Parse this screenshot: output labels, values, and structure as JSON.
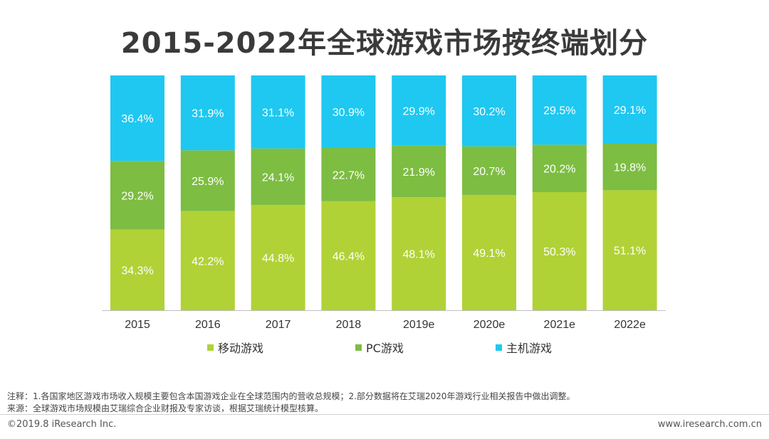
{
  "title": "2015-2022年全球游戏市场按终端划分",
  "chart_data": {
    "type": "bar",
    "stacked": true,
    "percent_stacked": true,
    "categories": [
      "2015",
      "2016",
      "2017",
      "2018",
      "2019e",
      "2020e",
      "2021e",
      "2022e"
    ],
    "series": [
      {
        "name": "移动游戏",
        "color": "#b0d236",
        "values": [
          34.3,
          42.2,
          44.8,
          46.4,
          48.1,
          49.1,
          50.3,
          51.1
        ]
      },
      {
        "name": "PC游戏",
        "color": "#7dbd42",
        "values": [
          29.2,
          25.9,
          24.1,
          22.7,
          21.9,
          20.7,
          20.2,
          19.8
        ]
      },
      {
        "name": "主机游戏",
        "color": "#1ec8f0",
        "values": [
          36.4,
          31.9,
          31.1,
          30.9,
          29.9,
          30.2,
          29.5,
          29.1
        ]
      }
    ],
    "value_suffix": "%",
    "ylim": [
      0,
      100
    ],
    "grid": false,
    "legend_position": "bottom"
  },
  "notes": {
    "note1": "注释：1.各国家地区游戏市场收入规模主要包含本国游戏企业在全球范围内的营收总规模；2.部分数据将在艾瑞2020年游戏行业相关报告中做出调整。",
    "note2": "来源：全球游戏市场规模由艾瑞综合企业财报及专家访谈，根据艾瑞统计模型核算。"
  },
  "footer": {
    "copyright": "©2019.8 iResearch Inc.",
    "website": "www.iresearch.com.cn"
  }
}
